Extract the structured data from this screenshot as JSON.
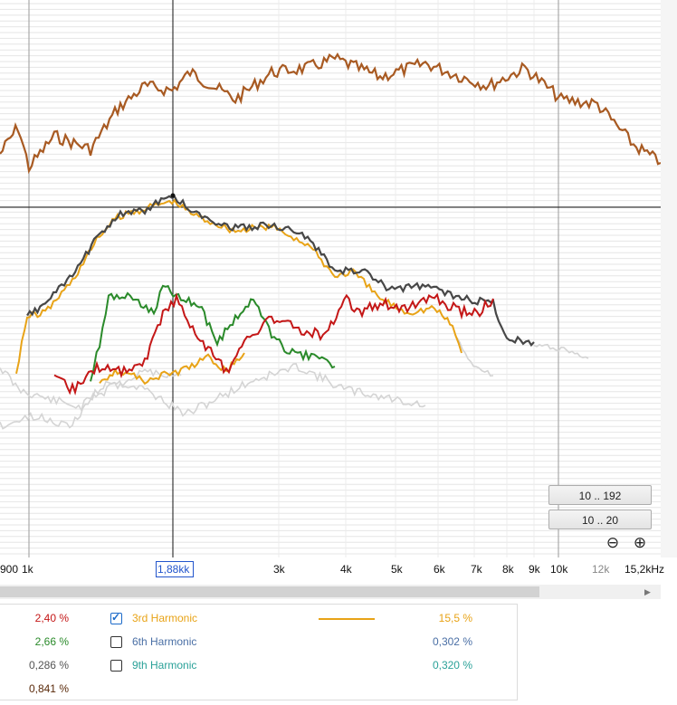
{
  "colors": {
    "brown": "#a85a22",
    "dark": "#474747",
    "orange": "#e8a317",
    "green": "#2a8a2a",
    "red": "#c41717",
    "gray": "#d4d4d4",
    "blue_text": "#4a6fa5",
    "teal_text": "#2aa198"
  },
  "range_buttons": [
    "10 .. 192",
    "10 .. 20"
  ],
  "zoom_icons": [
    "zoom-out-icon",
    "zoom-in-icon"
  ],
  "x_axis": {
    "labels": [
      "900",
      "1k",
      "3k",
      "4k",
      "5k",
      "6k",
      "7k",
      "8k",
      "9k",
      "10k",
      "12k",
      "15,2kHz"
    ],
    "cursor_label": "1,88k",
    "cursor_suffix": "k"
  },
  "legend": {
    "left_values": [
      "2,40 %",
      "2,66 %",
      "0,286 %",
      "0,841 %"
    ],
    "left_colors": [
      "#c41717",
      "#2a8a2a",
      "#555555",
      "#5a2a0a"
    ],
    "rows": [
      {
        "label": "3rd Harmonic",
        "checked": true,
        "value": "15,5 %",
        "color": "#e8a317"
      },
      {
        "label": "6th Harmonic",
        "checked": false,
        "value": "0,302 %",
        "color": "#4a6fa5"
      },
      {
        "label": "9th Harmonic",
        "checked": false,
        "value": "0,320 %",
        "color": "#2aa198"
      }
    ]
  }
}
